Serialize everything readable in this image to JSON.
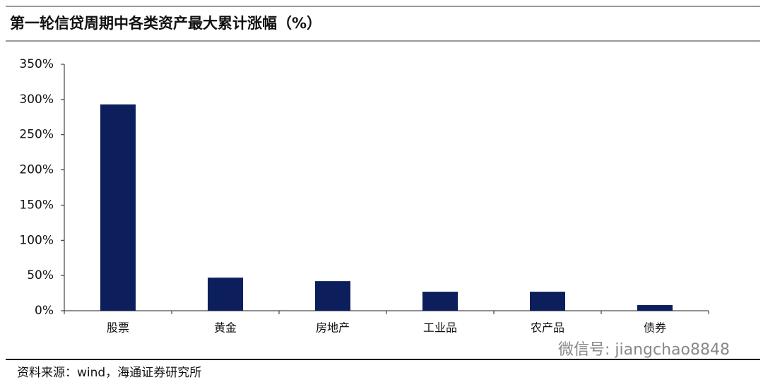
{
  "chart_data": {
    "type": "bar",
    "title": "第一轮信贷周期中各类资产最大累计涨幅（%）",
    "categories": [
      "股票",
      "黄金",
      "房地产",
      "工业品",
      "农产品",
      "债券"
    ],
    "values": [
      293,
      47,
      42,
      27,
      27,
      8
    ],
    "color": "#0c1f5c",
    "ylim": [
      0,
      350
    ],
    "yticks": [
      {
        "value": 0,
        "label": "0%"
      },
      {
        "value": 50,
        "label": "50%"
      },
      {
        "value": 100,
        "label": "100%"
      },
      {
        "value": 150,
        "label": "150%"
      },
      {
        "value": 200,
        "label": "200%"
      },
      {
        "value": 250,
        "label": "250%"
      },
      {
        "value": 300,
        "label": "300%"
      },
      {
        "value": 350,
        "label": "350%"
      }
    ],
    "grid": false,
    "source": "资料来源：wind，海通证券研究所",
    "watermark": "微信号: jiangchao8848"
  }
}
